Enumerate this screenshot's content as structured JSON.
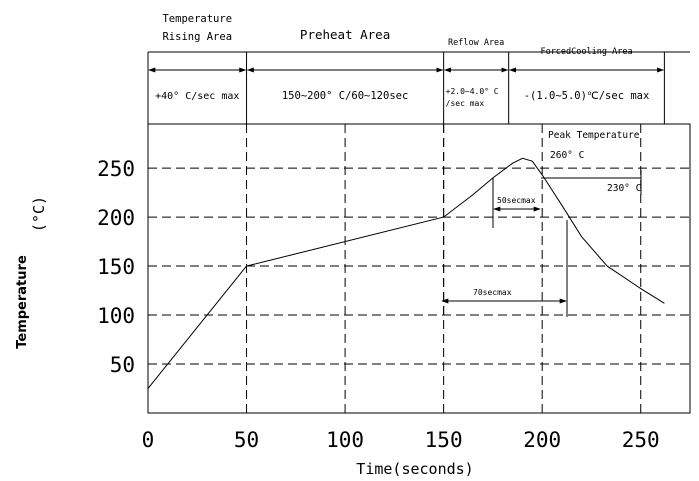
{
  "chart_data": {
    "type": "line",
    "xlabel": "Time(seconds)",
    "ylabel_main": "Temperature",
    "ylabel_unit": "(°C)",
    "xlim": [
      0,
      275
    ],
    "ylim": [
      0,
      295
    ],
    "x_ticks": [
      0,
      50,
      100,
      150,
      200,
      250
    ],
    "y_ticks": [
      50,
      100,
      150,
      200,
      250
    ],
    "grid": true,
    "series": [
      {
        "x": [
          0,
          50,
          150,
          165,
          175,
          185,
          190,
          195,
          200,
          210,
          220,
          233,
          250,
          262
        ],
        "y": [
          25,
          150,
          200,
          223,
          240,
          255,
          260,
          257,
          243,
          212,
          180,
          150,
          127,
          112
        ]
      }
    ],
    "zones": [
      {
        "start": 0,
        "end": 50,
        "title_lines": [
          "Temperature",
          "Rising Area"
        ],
        "rate": [
          "+40° C/sec max"
        ]
      },
      {
        "start": 50,
        "end": 150,
        "title_lines": [
          "Preheat Area"
        ],
        "rate": [
          "150~200° C/60~120sec"
        ]
      },
      {
        "start": 150,
        "end": 183,
        "title_lines": [
          "Reflow Area"
        ],
        "rate": [
          "+2.0~4.0° C",
          "/sec max"
        ]
      },
      {
        "start": 183,
        "end": 262,
        "title_lines": [
          "ForcedCooling Area"
        ],
        "rate": [
          "-(1.0~5.0)℃/sec max"
        ]
      }
    ],
    "annotations": {
      "peak_title": "Peak Temperature",
      "peak_value": "260° C",
      "level_230": "230° C",
      "span_50": "50secmax",
      "span_70": "70secmax"
    }
  }
}
